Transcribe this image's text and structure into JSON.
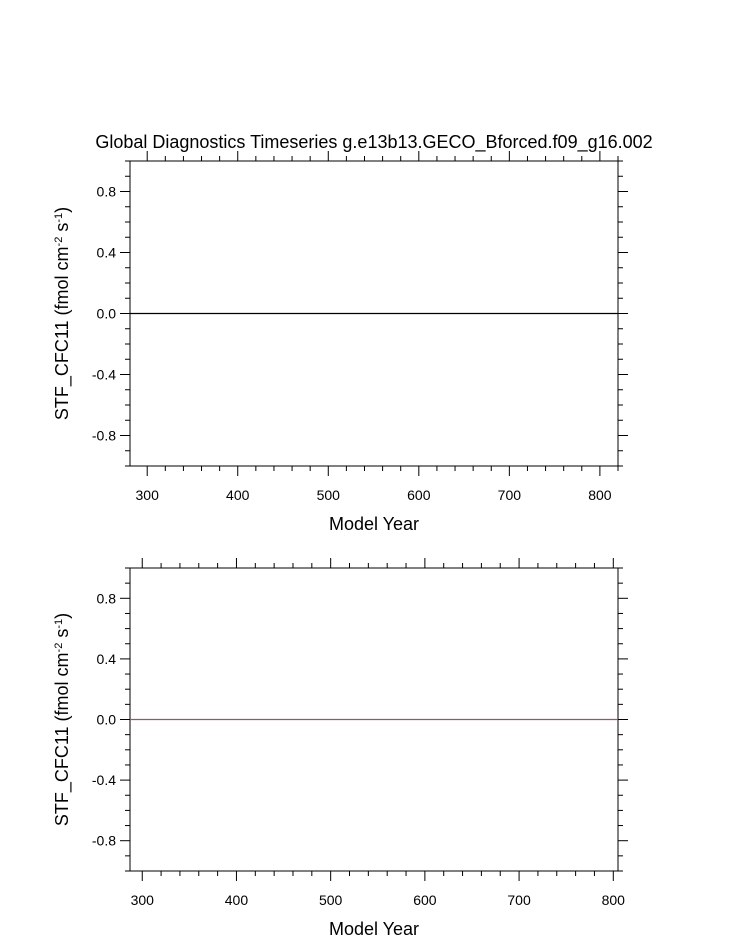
{
  "title": "Global Diagnostics Timeseries g.e13b13.GECO_Bforced.f09_g16.002",
  "chart_data": [
    {
      "type": "line",
      "xlabel": "Model Year",
      "ylabel_main": "STF_CFC11 (fmol cm",
      "ylabel_exp1": "-2",
      "ylabel_mid": " s",
      "ylabel_exp2": "-1",
      "ylabel_end": ")",
      "xlim": [
        281,
        820
      ],
      "ylim": [
        -1,
        1
      ],
      "xticks": [
        300,
        400,
        500,
        600,
        700,
        800
      ],
      "xtick_labels": [
        "300",
        "400",
        "500",
        "600",
        "700",
        "800"
      ],
      "yticks": [
        0.8,
        0.4,
        0.0,
        -0.4,
        -0.8
      ],
      "ytick_labels": [
        "0.8",
        "0.4",
        "0.0",
        "-0.4",
        "-0.8"
      ],
      "grid": false,
      "series": [
        {
          "x": [
            281,
            820
          ],
          "y": [
            0,
            0
          ],
          "color": "#000000"
        }
      ]
    },
    {
      "type": "line",
      "xlabel": "Model Year",
      "ylabel_main": "STF_CFC11 (fmol cm",
      "ylabel_exp1": "-2",
      "ylabel_mid": " s",
      "ylabel_exp2": "-1",
      "ylabel_end": ")",
      "xlim": [
        287,
        805
      ],
      "ylim": [
        -1,
        1
      ],
      "xticks": [
        300,
        400,
        500,
        600,
        700,
        800
      ],
      "xtick_labels": [
        "300",
        "400",
        "500",
        "600",
        "700",
        "800"
      ],
      "yticks": [
        0.8,
        0.4,
        0.0,
        -0.4,
        -0.8
      ],
      "ytick_labels": [
        "0.8",
        "0.4",
        "0.0",
        "-0.4",
        "-0.8"
      ],
      "grid": false,
      "series": [
        {
          "x": [
            287,
            805
          ],
          "y": [
            0,
            0
          ],
          "color": "#a0525a"
        }
      ]
    }
  ]
}
